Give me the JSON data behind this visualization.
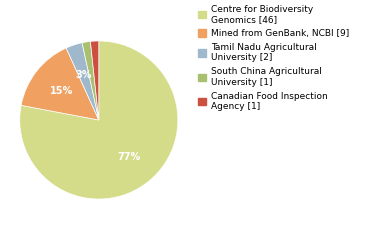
{
  "labels": [
    "Centre for Biodiversity\nGenomics [46]",
    "Mined from GenBank, NCBI [9]",
    "Tamil Nadu Agricultural\nUniversity [2]",
    "South China Agricultural\nUniversity [1]",
    "Canadian Food Inspection\nAgency [1]"
  ],
  "values": [
    46,
    9,
    2,
    1,
    1
  ],
  "colors": [
    "#d4dc8a",
    "#f0a060",
    "#a0b8cc",
    "#a8c070",
    "#cc5040"
  ],
  "legend_labels": [
    "Centre for Biodiversity\nGenomics [46]",
    "Mined from GenBank, NCBI [9]",
    "Tamil Nadu Agricultural\nUniversity [2]",
    "South China Agricultural\nUniversity [1]",
    "Canadian Food Inspection\nAgency [1]"
  ],
  "figsize": [
    3.8,
    2.4
  ],
  "dpi": 100,
  "startangle": 90,
  "pct_fontsize": 7,
  "legend_fontsize": 6.5,
  "background_color": "#ffffff"
}
